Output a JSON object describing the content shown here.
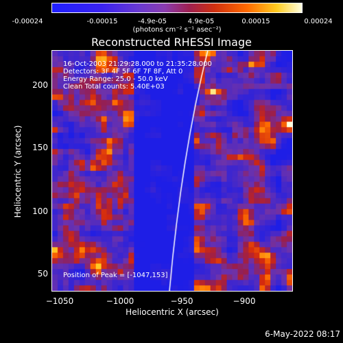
{
  "colorbar": {
    "ticks": [
      "-0.00024",
      "-0.00015",
      "-4.9e-05",
      "4.9e-05",
      "0.00015",
      "0.00024"
    ],
    "units": "(photons cm⁻² s⁻¹ asec⁻²)"
  },
  "title": "Reconstructed RHESSI Image",
  "annotations": {
    "time": "16-Oct-2003 21:29:28.000 to 21:35:28.000",
    "detectors": "Detectors: 3F 4F 5F 6F 7F 8F, Att 0",
    "energy": "Energy Range: 25.0 - 50.0 keV",
    "clean": "Clean     Total counts: 5.40E+03",
    "peak": "Position of Peak = [-1047,153]"
  },
  "axes": {
    "xlabel": "Heliocentric X (arcsec)",
    "ylabel": "Heliocentric Y (arcsec)",
    "xticks": [
      "−1050",
      "−1000",
      "−950",
      "−900"
    ],
    "yticks": [
      "200",
      "150",
      "100",
      "50"
    ]
  },
  "footer": {
    "date": "6-May-2022 08:17"
  },
  "colors": {
    "background": "#000000",
    "limb": "#ffffff"
  }
}
